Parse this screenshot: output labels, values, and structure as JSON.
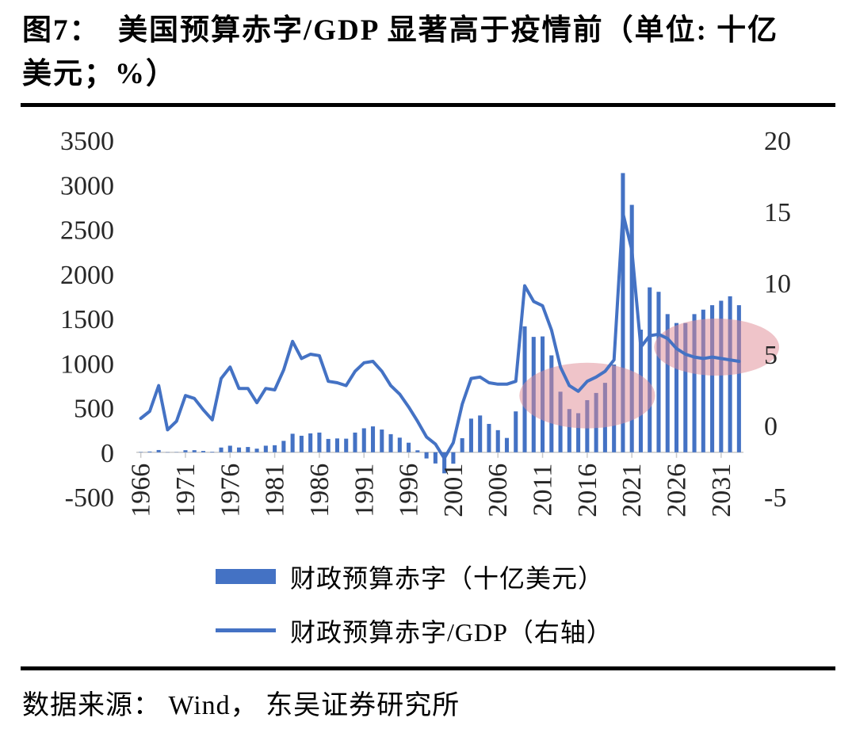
{
  "header": {
    "title_line1": "图7：  美国预算赤字/GDP 显著高于疫情前（单位: 十亿",
    "title_line2": "美元；%）"
  },
  "legend": [
    {
      "type": "bar",
      "label": "财政预算赤字（十亿美元）"
    },
    {
      "type": "line",
      "label": "财政预算赤字/GDP（右轴）"
    }
  ],
  "footer": {
    "source": "数据来源： Wind， 东吴证券研究所"
  },
  "colors": {
    "series_blue": "#4472C4",
    "highlight_pink": "#E08A94",
    "axis_text": "#262626",
    "baseline": "#C9C9C9"
  },
  "chart_data": {
    "type": "combo-bar-line",
    "title": "美国预算赤字/GDP 显著高于疫情前（单位: 十亿美元；%）",
    "grid": false,
    "legend_position": "bottom",
    "x": [
      1966,
      1967,
      1968,
      1969,
      1970,
      1971,
      1972,
      1973,
      1974,
      1975,
      1976,
      1977,
      1978,
      1979,
      1980,
      1981,
      1982,
      1983,
      1984,
      1985,
      1986,
      1987,
      1988,
      1989,
      1990,
      1991,
      1992,
      1993,
      1994,
      1995,
      1996,
      1997,
      1998,
      1999,
      2000,
      2001,
      2002,
      2003,
      2004,
      2005,
      2006,
      2007,
      2008,
      2009,
      2010,
      2011,
      2012,
      2013,
      2014,
      2015,
      2016,
      2017,
      2018,
      2019,
      2020,
      2021,
      2022,
      2023,
      2024,
      2025,
      2026,
      2027,
      2028,
      2029,
      2030,
      2031,
      2032,
      2033
    ],
    "series": [
      {
        "name": "财政预算赤字（十亿美元）",
        "type": "bar",
        "axis": "left",
        "values": [
          3.7,
          8.6,
          25.2,
          -3.2,
          2.8,
          23.0,
          23.4,
          14.9,
          6.1,
          53.2,
          73.7,
          53.7,
          59.2,
          40.7,
          73.8,
          79.0,
          128.0,
          207.8,
          185.4,
          212.3,
          221.2,
          149.7,
          155.2,
          152.6,
          221.0,
          269.2,
          290.3,
          255.1,
          203.2,
          164.0,
          107.4,
          21.9,
          -69.3,
          -125.6,
          -236.2,
          -128.2,
          157.8,
          377.6,
          412.7,
          318.3,
          248.2,
          160.7,
          458.6,
          1412.7,
          1294.4,
          1299.6,
          1087.0,
          679.5,
          484.6,
          438.5,
          584.7,
          665.4,
          779.0,
          984.4,
          3131.9,
          2775.3,
          1375.4,
          1850,
          1800,
          1550,
          1450,
          1450,
          1550,
          1600,
          1650,
          1700,
          1750,
          1650
        ]
      },
      {
        "name": "财政预算赤字/GDP（右轴）",
        "type": "line",
        "axis": "right",
        "values": [
          0.5,
          1.0,
          2.8,
          -0.3,
          0.3,
          2.1,
          1.9,
          1.1,
          0.4,
          3.3,
          4.1,
          2.6,
          2.6,
          1.6,
          2.6,
          2.5,
          3.9,
          5.9,
          4.7,
          5.0,
          4.9,
          3.1,
          3.0,
          2.8,
          3.8,
          4.4,
          4.5,
          3.8,
          2.8,
          2.2,
          1.3,
          0.3,
          -0.8,
          -1.3,
          -2.3,
          -1.2,
          1.5,
          3.3,
          3.4,
          3.0,
          2.9,
          2.9,
          3.1,
          9.8,
          8.7,
          8.4,
          6.7,
          4.1,
          2.8,
          2.4,
          3.1,
          3.4,
          3.8,
          4.6,
          14.9,
          12.3,
          5.5,
          6.3,
          6.4,
          6.1,
          5.4,
          5.0,
          4.8,
          4.7,
          4.8,
          4.7,
          4.6,
          4.5
        ]
      }
    ],
    "left_axis": {
      "min": -500,
      "max": 3500,
      "ticks": [
        3500,
        3000,
        2500,
        2000,
        1500,
        1000,
        500,
        0,
        -500
      ]
    },
    "right_axis": {
      "min": -5,
      "max": 20,
      "ticks": [
        20,
        15,
        10,
        5,
        0,
        -5
      ]
    },
    "x_ticks": [
      1966,
      1971,
      1976,
      1981,
      1986,
      1991,
      1996,
      2001,
      2006,
      2011,
      2016,
      2021,
      2026,
      2031
    ],
    "highlights": [
      {
        "name": "pre-pandemic-level",
        "center_year": 2016,
        "center_pct": 2.1,
        "rx_years": 7.6,
        "ry_pct": 2.3
      },
      {
        "name": "post-pandemic-projection",
        "center_year": 2030.5,
        "center_pct": 5.5,
        "rx_years": 7.0,
        "ry_pct": 2.0
      }
    ]
  }
}
